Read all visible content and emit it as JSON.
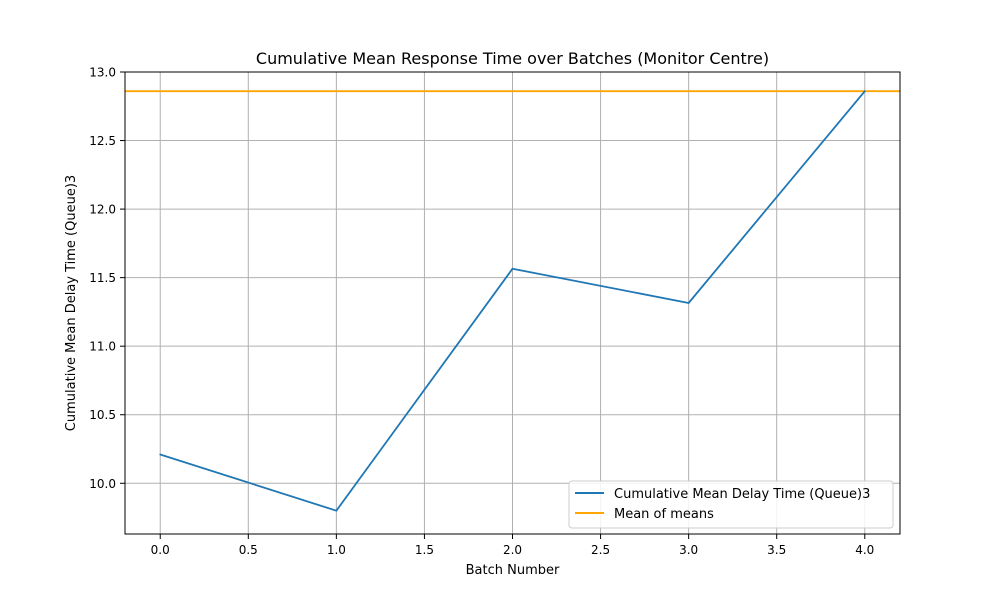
{
  "chart_data": {
    "type": "line",
    "title": "Cumulative Mean Response Time over Batches (Monitor Centre)",
    "xlabel": "Batch Number",
    "ylabel": "Cumulative Mean Delay Time (Queue)3",
    "x": [
      0,
      1,
      2,
      3,
      4
    ],
    "series": [
      {
        "name": "Cumulative Mean Delay Time (Queue)3",
        "color": "#1f77b4",
        "values": [
          10.21,
          9.8,
          11.565,
          11.315,
          12.86
        ]
      }
    ],
    "reference_lines": [
      {
        "name": "Mean of means",
        "color": "#ffa500",
        "y": 12.86
      }
    ],
    "xlim": [
      -0.2,
      4.2
    ],
    "ylim": [
      9.63,
      13.0
    ],
    "xticks": [
      0.0,
      0.5,
      1.0,
      1.5,
      2.0,
      2.5,
      3.0,
      3.5,
      4.0
    ],
    "xtick_labels": [
      "0.0",
      "0.5",
      "1.0",
      "1.5",
      "2.0",
      "2.5",
      "3.0",
      "3.5",
      "4.0"
    ],
    "yticks": [
      10.0,
      10.5,
      11.0,
      11.5,
      12.0,
      12.5,
      13.0
    ],
    "ytick_labels": [
      "10.0",
      "10.5",
      "11.0",
      "11.5",
      "12.0",
      "12.5",
      "13.0"
    ],
    "grid": true,
    "legend_position": "lower right"
  }
}
